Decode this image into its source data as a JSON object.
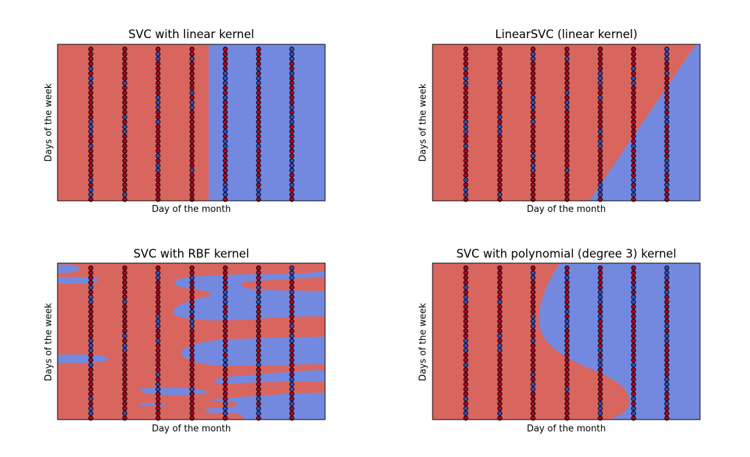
{
  "figure": {
    "colors": {
      "red_region": "#d8665f",
      "blue_region": "#7389e0",
      "red_point": "#b40426",
      "blue_point": "#3b4cc0",
      "edge": "#000000"
    }
  },
  "chart_data": [
    {
      "type": "scatter",
      "title": "SVC with linear kernel",
      "xlabel": "Day of the month",
      "ylabel": "Days of the week",
      "background": "decision regions",
      "boundary": {
        "kind": "vertical",
        "at_column_fraction": 0.565
      },
      "columns": 7,
      "points_per_column": 32,
      "red_point_pattern": [
        1,
        1,
        0,
        1,
        1,
        1,
        1,
        0,
        1,
        1,
        0,
        1,
        1,
        1,
        1,
        1,
        1,
        0,
        1,
        1,
        1,
        1,
        0,
        1,
        1,
        1,
        1,
        1,
        0,
        1,
        1,
        1,
        0,
        0,
        1,
        1,
        0,
        1,
        1,
        1,
        1,
        0,
        1,
        1,
        0,
        1
      ]
    },
    {
      "type": "scatter",
      "title": "LinearSVC (linear kernel)",
      "xlabel": "Day of the month",
      "ylabel": "Days of the week",
      "background": "decision regions",
      "boundary": {
        "kind": "diagonal",
        "bottom_fraction": 0.585,
        "top_fraction": 0.985
      },
      "columns": 7,
      "points_per_column": 32,
      "red_point_pattern": [
        1,
        1,
        0,
        1,
        1,
        1,
        1,
        0,
        1,
        1,
        0,
        1,
        1,
        1,
        1,
        1,
        1,
        0,
        1,
        1,
        1,
        1,
        0,
        1,
        1,
        1,
        1,
        1,
        0,
        1,
        1,
        1,
        0,
        0,
        1,
        1,
        0,
        1,
        1,
        1,
        1,
        0,
        1,
        1,
        0,
        1
      ]
    },
    {
      "type": "scatter",
      "title": "SVC with RBF kernel",
      "xlabel": "Day of the month",
      "ylabel": "Days of the week",
      "background": "decision regions",
      "boundary": {
        "kind": "rbf"
      },
      "columns": 7,
      "points_per_column": 32,
      "red_point_pattern": [
        1,
        1,
        0,
        1,
        1,
        1,
        1,
        0,
        1,
        1,
        0,
        1,
        1,
        1,
        1,
        1,
        1,
        0,
        1,
        1,
        1,
        1,
        0,
        1,
        1,
        1,
        1,
        1,
        0,
        1,
        1,
        1,
        0,
        0,
        1,
        1,
        0,
        1,
        1,
        1,
        1,
        0,
        1,
        1,
        0,
        1
      ]
    },
    {
      "type": "scatter",
      "title": "SVC with polynomial (degree 3) kernel",
      "xlabel": "Day of the month",
      "ylabel": "Days of the week",
      "background": "decision regions",
      "boundary": {
        "kind": "polynomial"
      },
      "columns": 7,
      "points_per_column": 32,
      "red_point_pattern": [
        1,
        1,
        0,
        1,
        1,
        1,
        1,
        0,
        1,
        1,
        0,
        1,
        1,
        1,
        1,
        1,
        1,
        0,
        1,
        1,
        1,
        1,
        0,
        1,
        1,
        1,
        1,
        1,
        0,
        1,
        1,
        1,
        0,
        0,
        1,
        1,
        0,
        1,
        1,
        1,
        1,
        0,
        1,
        1,
        0,
        1
      ]
    }
  ]
}
